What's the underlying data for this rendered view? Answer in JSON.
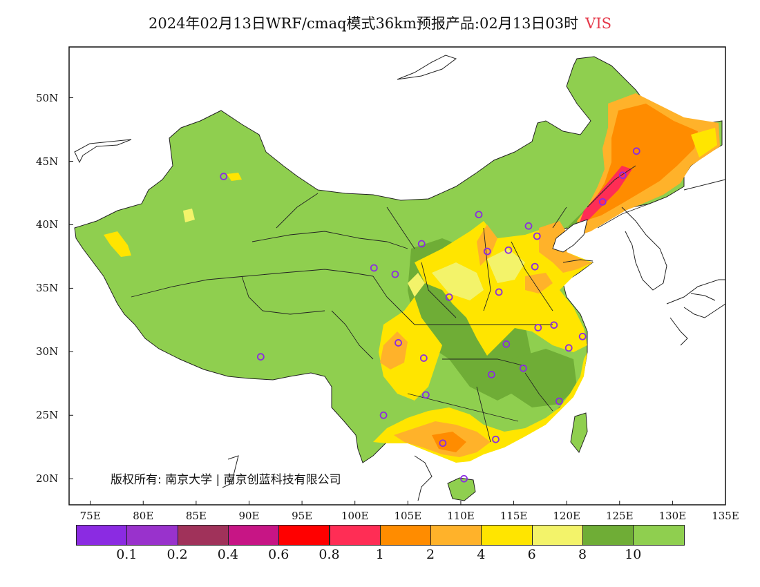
{
  "title": {
    "main": "2024年02月13日WRF/cmaq模式36km预报产品:02月13日03时",
    "variable": "VIS"
  },
  "copyright": "版权所有: 南京大学 | 南京创蓝科技有限公司",
  "axes": {
    "lon_labels": [
      "75E",
      "80E",
      "85E",
      "90E",
      "95E",
      "100E",
      "105E",
      "110E",
      "115E",
      "120E",
      "125E",
      "130E",
      "135E"
    ],
    "lat_labels": [
      "20N",
      "25N",
      "30N",
      "35N",
      "40N",
      "45N",
      "50N"
    ]
  },
  "legend": {
    "colors": [
      "#8b2be2",
      "#9932cc",
      "#a0325a",
      "#c71585",
      "#ff0000",
      "#ff2d55",
      "#ff8c00",
      "#ffb22a",
      "#ffe500",
      "#f3f36a",
      "#6fad36",
      "#8fcf4f"
    ],
    "labels": [
      "0.1",
      "0.2",
      "0.4",
      "0.6",
      "0.8",
      "1",
      "2",
      "4",
      "6",
      "8",
      "10"
    ]
  },
  "colors": {
    "good_vis": "#8fcf4f",
    "moderate_vis": "#6fad36",
    "light_yellow": "#f3f36a",
    "yellow": "#ffe500",
    "orange_light": "#ffb22a",
    "orange": "#ff8c00",
    "red_pink": "#ff2d55",
    "station_marker": "#8b2be2"
  },
  "stations": [
    {
      "lon": 87.6,
      "lat": 43.8
    },
    {
      "lon": 91.1,
      "lat": 29.6
    },
    {
      "lon": 101.8,
      "lat": 36.6
    },
    {
      "lon": 103.8,
      "lat": 36.1
    },
    {
      "lon": 106.3,
      "lat": 38.5
    },
    {
      "lon": 111.7,
      "lat": 40.8
    },
    {
      "lon": 112.5,
      "lat": 37.9
    },
    {
      "lon": 114.5,
      "lat": 38.0
    },
    {
      "lon": 116.4,
      "lat": 39.9
    },
    {
      "lon": 117.2,
      "lat": 39.1
    },
    {
      "lon": 117.0,
      "lat": 36.7
    },
    {
      "lon": 113.6,
      "lat": 34.7
    },
    {
      "lon": 108.9,
      "lat": 34.3
    },
    {
      "lon": 104.1,
      "lat": 30.7
    },
    {
      "lon": 106.5,
      "lat": 29.5
    },
    {
      "lon": 106.7,
      "lat": 26.6
    },
    {
      "lon": 102.7,
      "lat": 25.0
    },
    {
      "lon": 108.3,
      "lat": 22.8
    },
    {
      "lon": 113.3,
      "lat": 23.1
    },
    {
      "lon": 110.3,
      "lat": 20.0
    },
    {
      "lon": 112.9,
      "lat": 28.2
    },
    {
      "lon": 114.3,
      "lat": 30.6
    },
    {
      "lon": 115.9,
      "lat": 28.7
    },
    {
      "lon": 117.3,
      "lat": 31.9
    },
    {
      "lon": 118.8,
      "lat": 32.1
    },
    {
      "lon": 120.2,
      "lat": 30.3
    },
    {
      "lon": 121.5,
      "lat": 31.2
    },
    {
      "lon": 119.3,
      "lat": 26.1
    },
    {
      "lon": 123.4,
      "lat": 41.8
    },
    {
      "lon": 125.3,
      "lat": 43.9
    },
    {
      "lon": 126.6,
      "lat": 45.8
    }
  ]
}
